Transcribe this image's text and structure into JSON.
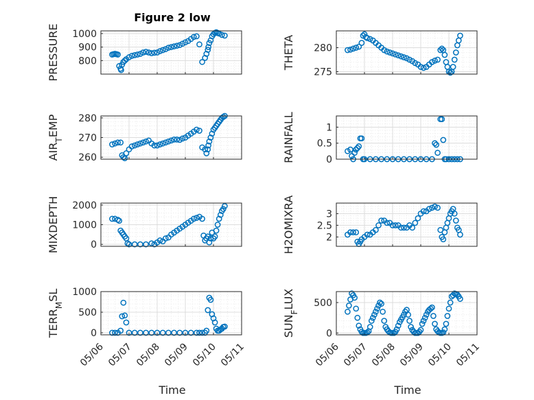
{
  "figure": {
    "title": "Figure 2 low",
    "x_dates": [
      "05/06",
      "05/07",
      "05/08",
      "05/09",
      "05/10",
      "05/11"
    ],
    "xlabel": "Time",
    "marker_color": "#0072BD"
  },
  "chart_data": [
    {
      "type": "scatter",
      "ylabel": "PRESSURE",
      "xlabel": "",
      "title": "Figure 2 low",
      "xlim": [
        "05/06",
        "05/11"
      ],
      "ylim": [
        700,
        1020
      ],
      "yticks": [
        800,
        900,
        1000
      ],
      "grid": "on",
      "x": [
        6.4,
        6.45,
        6.5,
        6.55,
        6.6,
        6.65,
        6.7,
        6.72,
        6.75,
        6.8,
        6.85,
        6.9,
        7.0,
        7.1,
        7.2,
        7.3,
        7.4,
        7.5,
        7.6,
        7.7,
        7.8,
        7.9,
        8.0,
        8.1,
        8.2,
        8.3,
        8.4,
        8.5,
        8.6,
        8.7,
        8.8,
        8.9,
        9.0,
        9.1,
        9.2,
        9.3,
        9.4,
        9.5,
        9.6,
        9.7,
        9.75,
        9.8,
        9.82,
        9.85,
        9.9,
        9.95,
        10.0,
        10.05,
        10.1,
        10.15,
        10.2,
        10.3,
        10.4
      ],
      "y": [
        845,
        848,
        850,
        848,
        845,
        760,
        740,
        730,
        770,
        790,
        800,
        810,
        825,
        835,
        840,
        845,
        850,
        860,
        865,
        860,
        855,
        858,
        860,
        870,
        878,
        885,
        895,
        900,
        905,
        910,
        915,
        925,
        935,
        945,
        960,
        975,
        980,
        920,
        790,
        820,
        850,
        880,
        900,
        930,
        950,
        980,
        995,
        1005,
        1010,
        1005,
        1000,
        990,
        985
      ]
    },
    {
      "type": "scatter",
      "ylabel": "THETA",
      "xlabel": "",
      "title": "",
      "xlim": [
        "05/06",
        "05/11"
      ],
      "ylim": [
        274.5,
        283.5
      ],
      "yticks": [
        275,
        280
      ],
      "grid": "on",
      "x": [
        6.4,
        6.5,
        6.6,
        6.7,
        6.8,
        6.9,
        6.95,
        7.0,
        7.05,
        7.1,
        7.2,
        7.3,
        7.4,
        7.5,
        7.6,
        7.7,
        7.8,
        7.9,
        8.0,
        8.1,
        8.2,
        8.3,
        8.4,
        8.5,
        8.6,
        8.7,
        8.8,
        8.9,
        9.0,
        9.1,
        9.2,
        9.3,
        9.4,
        9.5,
        9.6,
        9.7,
        9.75,
        9.8,
        9.85,
        9.9,
        9.95,
        10.0,
        10.05,
        10.1,
        10.15,
        10.2,
        10.25,
        10.3,
        10.35,
        10.4
      ],
      "y": [
        279.5,
        279.6,
        279.8,
        280,
        280.2,
        281,
        282.5,
        282.8,
        282.2,
        282,
        281.8,
        281.5,
        281,
        280.5,
        280,
        279.5,
        279.2,
        279,
        278.8,
        278.6,
        278.4,
        278.2,
        278,
        277.8,
        277.5,
        277.2,
        276.8,
        276.5,
        276,
        275.8,
        276,
        276.5,
        277,
        277.3,
        277.5,
        279.5,
        279.8,
        279.5,
        278.5,
        277,
        276,
        275,
        274.8,
        275,
        276,
        277.5,
        279,
        280.5,
        281.5,
        282.5
      ]
    },
    {
      "type": "scatter",
      "ylabel": "AIR_TEMP",
      "xlabel": "",
      "title": "",
      "xlim": [
        "05/06",
        "05/11"
      ],
      "ylim": [
        259,
        281
      ],
      "yticks": [
        260,
        270,
        280
      ],
      "grid": "on",
      "x": [
        6.4,
        6.5,
        6.6,
        6.7,
        6.75,
        6.8,
        6.85,
        6.9,
        7.0,
        7.1,
        7.2,
        7.3,
        7.4,
        7.5,
        7.6,
        7.7,
        7.8,
        7.9,
        8.0,
        8.1,
        8.2,
        8.3,
        8.4,
        8.5,
        8.6,
        8.7,
        8.8,
        8.9,
        9.0,
        9.1,
        9.2,
        9.3,
        9.4,
        9.5,
        9.6,
        9.7,
        9.75,
        9.8,
        9.82,
        9.85,
        9.9,
        9.95,
        10.0,
        10.05,
        10.1,
        10.15,
        10.2,
        10.25,
        10.3,
        10.35,
        10.4
      ],
      "y": [
        266.5,
        267,
        267.5,
        267.5,
        261,
        260,
        259.5,
        262,
        264,
        265.5,
        266,
        266.5,
        267,
        267.5,
        268,
        268.5,
        267,
        266,
        266,
        266.5,
        267,
        267.5,
        268,
        268.5,
        269,
        269,
        268.8,
        269.5,
        270,
        271,
        272,
        273,
        274,
        273.5,
        265,
        264,
        262,
        264,
        266,
        268,
        270,
        272,
        274,
        275,
        276,
        277,
        278,
        279,
        280,
        280.5,
        281
      ]
    },
    {
      "type": "scatter",
      "ylabel": "RAINFALL",
      "xlabel": "",
      "title": "",
      "xlim": [
        "05/06",
        "05/11"
      ],
      "ylim": [
        0,
        1.35
      ],
      "yticks": [
        0,
        0.5,
        1
      ],
      "grid": "on",
      "x": [
        6.4,
        6.5,
        6.55,
        6.6,
        6.65,
        6.7,
        6.75,
        6.8,
        6.85,
        6.9,
        6.95,
        7.0,
        7.2,
        7.4,
        7.6,
        7.8,
        8.0,
        8.2,
        8.4,
        8.6,
        8.8,
        9.0,
        9.2,
        9.4,
        9.5,
        9.55,
        9.6,
        9.7,
        9.75,
        9.8,
        9.85,
        9.9,
        10.0,
        10.1,
        10.2,
        10.3,
        10.4
      ],
      "y": [
        0.25,
        0.3,
        0.1,
        0,
        0.2,
        0.3,
        0.35,
        0.4,
        0.65,
        0.65,
        0,
        0,
        0,
        0,
        0,
        0,
        0,
        0,
        0,
        0,
        0,
        0,
        0,
        0,
        0.5,
        0.45,
        0.2,
        1.25,
        1.25,
        0.6,
        0,
        0,
        0,
        0,
        0,
        0,
        0
      ]
    },
    {
      "type": "scatter",
      "ylabel": "MIXDEPTH",
      "xlabel": "",
      "title": "",
      "xlim": [
        "05/06",
        "05/11"
      ],
      "ylim": [
        -100,
        2100
      ],
      "yticks": [
        0,
        1000,
        2000
      ],
      "grid": "on",
      "x": [
        6.4,
        6.5,
        6.6,
        6.65,
        6.7,
        6.75,
        6.8,
        6.85,
        6.9,
        6.95,
        7.0,
        7.2,
        7.4,
        7.6,
        7.8,
        7.9,
        8.0,
        8.1,
        8.2,
        8.3,
        8.4,
        8.5,
        8.6,
        8.7,
        8.8,
        8.9,
        9.0,
        9.1,
        9.2,
        9.3,
        9.4,
        9.5,
        9.6,
        9.65,
        9.7,
        9.75,
        9.8,
        9.85,
        9.9,
        9.95,
        10.0,
        10.05,
        10.1,
        10.15,
        10.2,
        10.25,
        10.3,
        10.35,
        10.4
      ],
      "y": [
        1300,
        1300,
        1250,
        1200,
        700,
        600,
        500,
        400,
        300,
        50,
        0,
        0,
        0,
        0,
        50,
        0,
        100,
        200,
        150,
        300,
        350,
        500,
        600,
        700,
        800,
        900,
        1000,
        1100,
        1200,
        1300,
        1350,
        1400,
        1300,
        450,
        200,
        300,
        400,
        100,
        300,
        600,
        300,
        400,
        700,
        1000,
        1300,
        1500,
        1700,
        1800,
        1950
      ]
    },
    {
      "type": "scatter",
      "ylabel": "H2OMIXRA",
      "xlabel": "",
      "title": "",
      "xlim": [
        "05/06",
        "05/11"
      ],
      "ylim": [
        1.6,
        3.45
      ],
      "yticks": [
        2,
        2.5,
        3
      ],
      "grid": "on",
      "x": [
        6.4,
        6.5,
        6.6,
        6.7,
        6.75,
        6.8,
        6.85,
        6.9,
        7.0,
        7.1,
        7.2,
        7.3,
        7.4,
        7.5,
        7.6,
        7.7,
        7.8,
        7.9,
        8.0,
        8.1,
        8.2,
        8.3,
        8.4,
        8.5,
        8.6,
        8.7,
        8.8,
        8.9,
        9.0,
        9.1,
        9.2,
        9.3,
        9.4,
        9.5,
        9.6,
        9.7,
        9.75,
        9.8,
        9.85,
        9.9,
        9.95,
        10.0,
        10.05,
        10.1,
        10.15,
        10.2,
        10.25,
        10.3,
        10.35,
        10.4
      ],
      "y": [
        2.1,
        2.2,
        2.2,
        2.2,
        1.8,
        1.7,
        1.8,
        1.9,
        2.0,
        2.1,
        2.1,
        2.2,
        2.3,
        2.5,
        2.7,
        2.7,
        2.6,
        2.6,
        2.5,
        2.5,
        2.5,
        2.4,
        2.4,
        2.4,
        2.5,
        2.4,
        2.6,
        2.8,
        3.0,
        3.1,
        3.1,
        3.2,
        3.25,
        3.3,
        3.25,
        2.3,
        2.0,
        1.9,
        2.2,
        2.4,
        2.6,
        2.8,
        3.0,
        3.1,
        3.2,
        3.0,
        2.7,
        2.4,
        2.3,
        2.1
      ]
    },
    {
      "type": "scatter",
      "ylabel": "TERR_MSL",
      "xlabel": "",
      "title": "",
      "xlim": [
        "05/06",
        "05/11"
      ],
      "ylim": [
        -50,
        1000
      ],
      "yticks": [
        0,
        500,
        1000
      ],
      "grid": "on",
      "x": [
        6.4,
        6.5,
        6.6,
        6.7,
        6.75,
        6.8,
        6.85,
        6.9,
        7.0,
        7.2,
        7.4,
        7.6,
        7.8,
        8.0,
        8.2,
        8.4,
        8.6,
        8.8,
        9.0,
        9.2,
        9.4,
        9.5,
        9.6,
        9.7,
        9.75,
        9.8,
        9.85,
        9.9,
        9.95,
        10.0,
        10.05,
        10.1,
        10.15,
        10.2,
        10.25,
        10.3,
        10.35,
        10.4
      ],
      "y": [
        0,
        0,
        0,
        50,
        400,
        730,
        420,
        250,
        0,
        0,
        0,
        0,
        0,
        0,
        0,
        0,
        0,
        0,
        0,
        0,
        0,
        0,
        0,
        0,
        50,
        550,
        850,
        800,
        450,
        350,
        250,
        100,
        50,
        50,
        80,
        100,
        140,
        150
      ]
    },
    {
      "type": "scatter",
      "ylabel": "SUN_FLUX",
      "xlabel": "",
      "title": "",
      "xlim": [
        "05/06",
        "05/11"
      ],
      "ylim": [
        -30,
        680
      ],
      "yticks": [
        0,
        500
      ],
      "grid": "on",
      "x": [
        6.4,
        6.45,
        6.5,
        6.55,
        6.6,
        6.65,
        6.7,
        6.75,
        6.8,
        6.85,
        6.9,
        6.95,
        7.0,
        7.05,
        7.1,
        7.15,
        7.2,
        7.25,
        7.3,
        7.35,
        7.4,
        7.45,
        7.5,
        7.55,
        7.6,
        7.65,
        7.7,
        7.75,
        7.8,
        7.85,
        7.9,
        7.95,
        8.0,
        8.05,
        8.1,
        8.15,
        8.2,
        8.25,
        8.3,
        8.35,
        8.4,
        8.45,
        8.5,
        8.55,
        8.6,
        8.65,
        8.7,
        8.75,
        8.8,
        8.85,
        8.9,
        8.95,
        9.0,
        9.05,
        9.1,
        9.15,
        9.2,
        9.25,
        9.3,
        9.35,
        9.4,
        9.45,
        9.5,
        9.55,
        9.6,
        9.65,
        9.7,
        9.75,
        9.8,
        9.85,
        9.9,
        9.95,
        10.0,
        10.05,
        10.1,
        10.15,
        10.2,
        10.25,
        10.3,
        10.35,
        10.4
      ],
      "y": [
        350,
        450,
        550,
        650,
        620,
        580,
        400,
        250,
        120,
        60,
        20,
        0,
        0,
        0,
        10,
        30,
        100,
        200,
        250,
        300,
        350,
        400,
        450,
        500,
        480,
        350,
        200,
        100,
        60,
        30,
        10,
        0,
        0,
        0,
        20,
        60,
        120,
        180,
        220,
        260,
        300,
        350,
        380,
        300,
        200,
        100,
        50,
        20,
        0,
        0,
        0,
        20,
        50,
        150,
        200,
        250,
        300,
        350,
        380,
        400,
        420,
        280,
        150,
        60,
        30,
        10,
        0,
        0,
        10,
        60,
        150,
        280,
        400,
        500,
        600,
        620,
        650,
        640,
        630,
        600,
        560
      ]
    }
  ]
}
